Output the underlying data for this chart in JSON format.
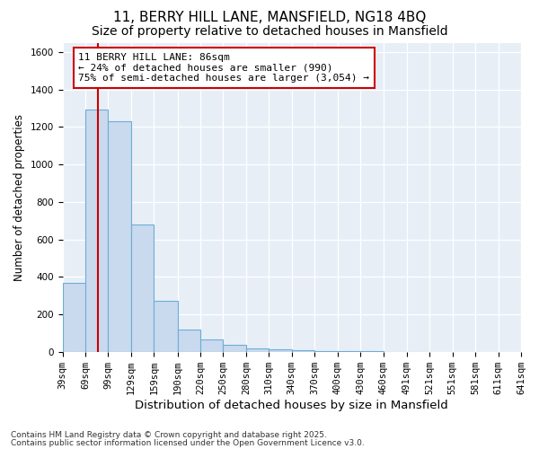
{
  "title": "11, BERRY HILL LANE, MANSFIELD, NG18 4BQ",
  "subtitle": "Size of property relative to detached houses in Mansfield",
  "xlabel": "Distribution of detached houses by size in Mansfield",
  "ylabel": "Number of detached properties",
  "footnote1": "Contains HM Land Registry data © Crown copyright and database right 2025.",
  "footnote2": "Contains public sector information licensed under the Open Government Licence v3.0.",
  "annotation_title": "11 BERRY HILL LANE: 86sqm",
  "annotation_line2": "← 24% of detached houses are smaller (990)",
  "annotation_line3": "75% of semi-detached houses are larger (3,054) →",
  "property_size": 86,
  "bar_color": "#c9d9ee",
  "bar_edge_color": "#6baed6",
  "vline_color": "#cc0000",
  "annotation_box_edgecolor": "#cc0000",
  "annotation_bg": "white",
  "background_color": "#ffffff",
  "plot_bg_color": "#e8eef6",
  "grid_color": "#ffffff",
  "bins": [
    39,
    69,
    99,
    129,
    159,
    190,
    220,
    250,
    280,
    310,
    340,
    370,
    400,
    430,
    460,
    491,
    521,
    551,
    581,
    611,
    641
  ],
  "counts": [
    370,
    1295,
    1230,
    680,
    270,
    120,
    65,
    35,
    20,
    12,
    7,
    4,
    2,
    2,
    1,
    1,
    0,
    0,
    0,
    0
  ],
  "ylim": [
    0,
    1650
  ],
  "yticks": [
    0,
    200,
    400,
    600,
    800,
    1000,
    1200,
    1400,
    1600
  ],
  "title_fontsize": 11,
  "subtitle_fontsize": 10,
  "xlabel_fontsize": 9.5,
  "ylabel_fontsize": 8.5,
  "tick_fontsize": 7.5,
  "annotation_fontsize": 8,
  "footnote_fontsize": 6.5
}
